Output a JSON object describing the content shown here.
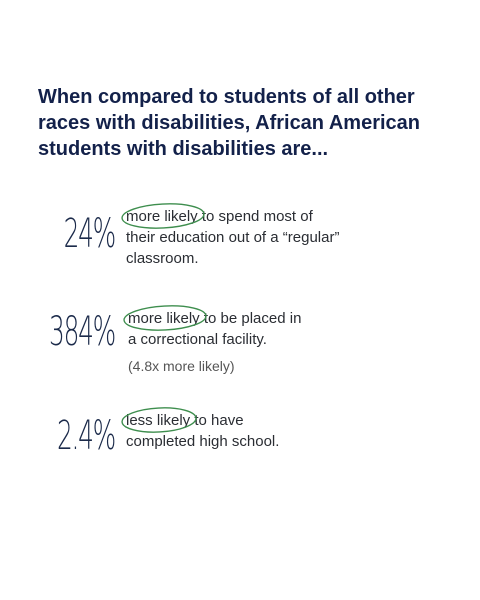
{
  "headline": {
    "before": "When compared to ",
    "bold": "students",
    "after": " of all other races with disabilities, African American students with disabilities are..."
  },
  "stats": [
    {
      "number": "24%",
      "highlight": "more likely",
      "rest": " to spend most of their education out of a “regular” classroom.",
      "note": ""
    },
    {
      "number": "384%",
      "highlight": "more likely",
      "rest": " to be placed in a correctional facility.",
      "note": "(4.8x more likely)"
    },
    {
      "number": "2.4%",
      "highlight": "less likely",
      "rest": " to have completed high school.",
      "note": ""
    }
  ],
  "colors": {
    "headline": "#13214a",
    "circle": "#3e8e4e"
  }
}
